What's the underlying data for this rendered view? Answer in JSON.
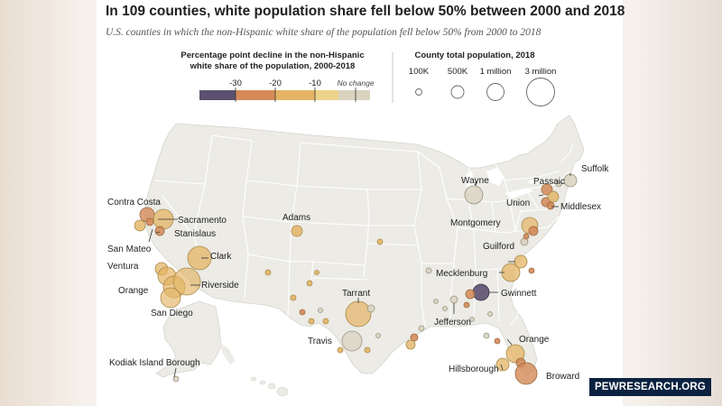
{
  "title": "In 109 counties, white population share fell below 50% between 2000 and 2018",
  "subtitle": "U.S. counties in which the non-Hispanic white share of the population fell below 50% from 2000 to 2018",
  "legend_color": {
    "title_line1": "Percentage point decline in the non-Hispanic",
    "title_line2": "white share of the population, 2000-2018",
    "ticks": [
      "-30",
      "-20",
      "-10",
      "No change"
    ],
    "colors": [
      "#5c5070",
      "#d58a58",
      "#e4b464",
      "#ecd38a",
      "#d9d3bf"
    ]
  },
  "legend_size": {
    "title": "County total population, 2018",
    "labels": [
      "100K",
      "500K",
      "1 million",
      "3 million"
    ]
  },
  "county_labels": [
    "Contra Costa",
    "Sacramento",
    "Stanislaus",
    "San Mateo",
    "Ventura",
    "Orange",
    "Riverside",
    "San Diego",
    "Clark",
    "Adams",
    "Tarrant",
    "Travis",
    "Kodiak Island Borough",
    "Wayne",
    "Suffolk",
    "Passaic",
    "Union",
    "Middlesex",
    "Montgomery",
    "Guilford",
    "Mecklenburg",
    "Gwinnett",
    "Jefferson",
    "Orange",
    "Hillsborough",
    "Broward"
  ],
  "colors": {
    "land": "#ecebe6",
    "state_border": "#ffffff",
    "dark_purple": "#5c5070",
    "orange": "#d58a58",
    "light_orange": "#e4b464",
    "yellow": "#ecd38a",
    "gray": "#d9d3bf"
  },
  "source_badge": "PEWRESEARCH.ORG"
}
